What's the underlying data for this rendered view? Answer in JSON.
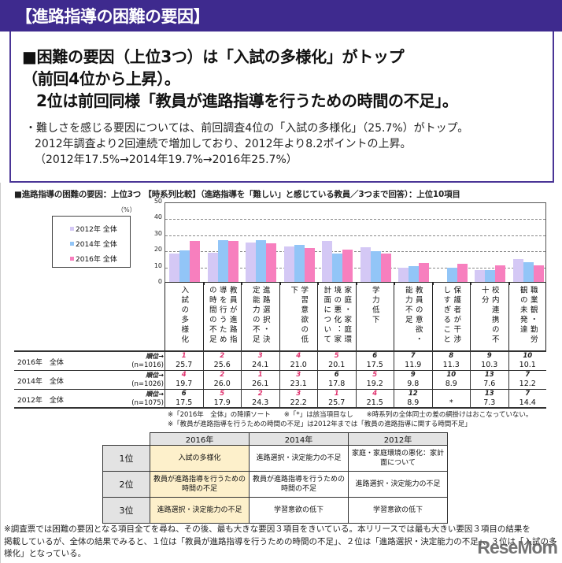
{
  "header": {
    "title": "【進路指導の困難の要因】"
  },
  "summary": {
    "headline_lines": [
      "■困難の要因（上位3つ）は「入試の多様化」がトップ",
      "（前回4位から上昇）。",
      "2位は前回同様「教員が進路指導を行うための時間の不足」。"
    ],
    "description_lines": [
      "・難しさを感じる要因については、前回調査4位の「入試の多様化」（25.7%）がトップ。",
      "2012年調査より2回連続で増加しており、2012年より8.2ポイントの上昇。",
      "（2012年17.5%→2014年19.7%→2016年25.7%）"
    ]
  },
  "chart_section": {
    "title": "■進路指導の困難の要因：上位3つ 【時系列比較】（進路指導を「難しい」と感じている教員／3つまで回答）：上位10項目",
    "unit": "（%）",
    "rank_label": "順位→",
    "notes": [
      "※「2016年　全体」の降順ソート　　※「*」は該当項目なし　　※時系列の全体同士の差の網掛けはおこなっていない。",
      "※「教員が進路指導を行うための時間の不足」は2012年までは「教員の進路指導に関する時間不足」"
    ]
  },
  "chart_data": {
    "type": "bar",
    "title": "進路指導の困難の要因：上位3つ【時系列比較】：上位10項目",
    "ylabel": "（%）",
    "xlabel": "",
    "ylim": [
      0,
      50
    ],
    "yticks": [
      0,
      10,
      20,
      30,
      40,
      50
    ],
    "grid": true,
    "legend_position": "left",
    "categories": [
      "入試の多様化",
      "教員が進路指導を行うための時間の不足",
      "進路選択・決定能力の不足",
      "学習意欲の低下",
      "家庭・家庭環境の悪化：家計面について",
      "学力低下",
      "教員の意欲・能力不足",
      "保護者が干渉しすぎること",
      "校内連携の不十分",
      "職業観・勤労観の未発達"
    ],
    "series": [
      {
        "name": "2012年 全体",
        "color": "#d4c8f5",
        "n": "(n=1075)",
        "values": [
          17.5,
          17.9,
          24.3,
          22.2,
          25.7,
          21.5,
          8.9,
          null,
          7.3,
          14.4
        ],
        "display": [
          "17.5",
          "17.9",
          "24.3",
          "22.2",
          "25.7",
          "21.5",
          "8.9",
          "*",
          "7.3",
          "14.4"
        ],
        "ranks": [
          "6",
          "5",
          "2",
          "3",
          "1",
          "4",
          "12",
          "",
          "13",
          "7"
        ]
      },
      {
        "name": "2014年 全体",
        "color": "#92c5f7",
        "n": "(n=1026)",
        "values": [
          19.7,
          26.0,
          26.1,
          23.1,
          17.8,
          19.2,
          9.8,
          8.9,
          7.6,
          12.2
        ],
        "display": [
          "19.7",
          "26.0",
          "26.1",
          "23.1",
          "17.8",
          "19.2",
          "9.8",
          "8.9",
          "7.6",
          "12.2"
        ],
        "ranks": [
          "4",
          "2",
          "1",
          "3",
          "6",
          "5",
          "9",
          "10",
          "13",
          "7"
        ]
      },
      {
        "name": "2016年 全体",
        "color": "#f77fbe",
        "n": "(n=1016)",
        "values": [
          25.7,
          25.6,
          24.1,
          21.0,
          20.1,
          17.5,
          11.9,
          11.3,
          10.3,
          10.1
        ],
        "display": [
          "25.7",
          "25.6",
          "24.1",
          "21.0",
          "20.1",
          "17.5",
          "11.9",
          "11.3",
          "10.3",
          "10.1"
        ],
        "ranks": [
          "1",
          "2",
          "3",
          "4",
          "5",
          "6",
          "7",
          "8",
          "9",
          "10"
        ]
      }
    ],
    "table_row_order": [
      "2016年 全体",
      "2014年 全体",
      "2012年 全体"
    ]
  },
  "table_rows": [
    {
      "label": "2016年　全体",
      "n": "(n=1016)",
      "rank_colors": [
        "red",
        "red",
        "red",
        "red",
        "red",
        "black",
        "black",
        "black",
        "black",
        "black"
      ],
      "ranks": [
        "1",
        "2",
        "3",
        "4",
        "5",
        "6",
        "7",
        "8",
        "9",
        "10"
      ],
      "values": [
        "25.7",
        "25.6",
        "24.1",
        "21.0",
        "20.1",
        "17.5",
        "11.9",
        "11.3",
        "10.3",
        "10.1"
      ]
    },
    {
      "label": "2014年　全体",
      "n": "(n=1026)",
      "rank_colors": [
        "red",
        "red",
        "red",
        "red",
        "black",
        "red",
        "black",
        "black",
        "black",
        "black"
      ],
      "ranks": [
        "4",
        "2",
        "1",
        "3",
        "6",
        "5",
        "9",
        "10",
        "13",
        "7"
      ],
      "values": [
        "19.7",
        "26.0",
        "26.1",
        "23.1",
        "17.8",
        "19.2",
        "9.8",
        "8.9",
        "7.6",
        "12.2"
      ]
    },
    {
      "label": "2012年　全体",
      "n": "(n=1075)",
      "rank_colors": [
        "black",
        "red",
        "red",
        "red",
        "red",
        "red",
        "black",
        "black",
        "black",
        "black"
      ],
      "ranks": [
        "6",
        "5",
        "2",
        "3",
        "1",
        "4",
        "12",
        "",
        "13",
        "7"
      ],
      "values": [
        "17.5",
        "17.9",
        "24.3",
        "22.2",
        "25.7",
        "21.5",
        "8.9",
        "*",
        "7.3",
        "14.4"
      ]
    }
  ],
  "ranking_table": {
    "headers": [
      "2016年",
      "2014年",
      "2012年"
    ],
    "rows": [
      {
        "rank": "1位",
        "cells": [
          "入試の多様化",
          "進路選択・決定能力の不足",
          "家庭・家庭環境の悪化：家計面について"
        ]
      },
      {
        "rank": "2位",
        "cells": [
          "教員が進路指導を行うための時間の不足",
          "教員が進路指導を行うための時間の不足",
          "進路選択・決定能力の不足"
        ]
      },
      {
        "rank": "3位",
        "cells": [
          "進路選択・決定能力の不足",
          "学習意欲の低下",
          "学習意欲の低下"
        ]
      }
    ],
    "highlight_color": "#fdf0cb"
  },
  "footnote": {
    "lines": [
      "※調査票では困難の要因となる項目全てを尋ね、その後、最も大きな要因３項目をきいている。本リリースでは最も大きい要因３項目の結果を",
      "掲載しているが、全体の結果でみると、１位は「教員が進路指導を行うための時間の不足」、２位は「進路選択・決定能力の不足」、３位は「入試の多",
      "様化」となっている。"
    ]
  },
  "watermark": "ReseMom"
}
